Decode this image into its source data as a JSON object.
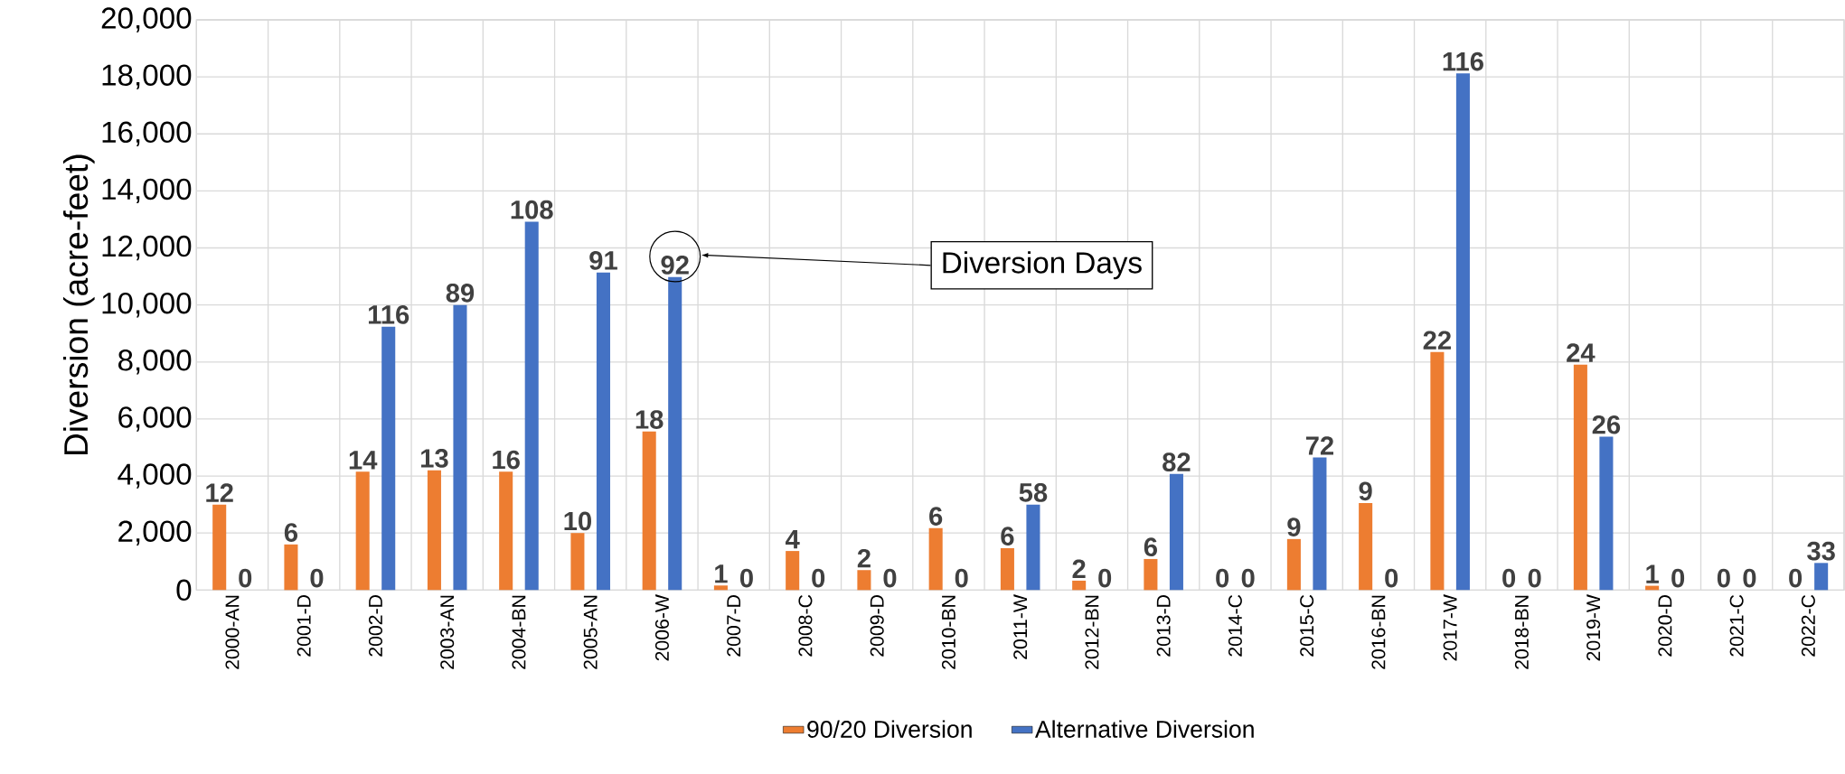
{
  "chart_data": {
    "type": "bar",
    "ylabel": "Diversion (acre-feet)",
    "categories": [
      "2000-AN",
      "2001-D",
      "2002-D",
      "2003-AN",
      "2004-BN",
      "2005-AN",
      "2006-W",
      "2007-D",
      "2008-C",
      "2009-D",
      "2010-BN",
      "2011-W",
      "2012-BN",
      "2013-D",
      "2014-C",
      "2015-C",
      "2016-BN",
      "2017-W",
      "2018-BN",
      "2019-W",
      "2020-D",
      "2021-C",
      "2022-C"
    ],
    "series": [
      {
        "name": "90/20 Diversion",
        "color": "#ed7d31",
        "values": [
          3000,
          1600,
          4150,
          4200,
          4150,
          2000,
          5560,
          160,
          1370,
          700,
          2170,
          1470,
          330,
          1090,
          0,
          1790,
          3050,
          8350,
          0,
          7910,
          150,
          0,
          0
        ]
      },
      {
        "name": "Alternative Diversion",
        "color": "#4472c4",
        "values": [
          0,
          0,
          9240,
          10000,
          12920,
          11140,
          10980,
          0,
          0,
          0,
          0,
          3000,
          0,
          4070,
          0,
          4650,
          0,
          18120,
          0,
          5380,
          0,
          0,
          950
        ]
      }
    ],
    "ylim": [
      0,
      20000
    ],
    "yticks": [
      0,
      {
        "value": 2000,
        "label": "2,000"
      },
      {
        "value": 4000,
        "label": "4,000"
      },
      {
        "value": 6000,
        "label": "6,000"
      },
      {
        "value": 8000,
        "label": "8,000"
      },
      {
        "value": 10000,
        "label": "10,000"
      },
      {
        "value": 12000,
        "label": "12,000"
      },
      {
        "value": 14000,
        "label": "14,000"
      },
      {
        "value": 16000,
        "label": "16,000"
      },
      {
        "value": 18000,
        "label": "18,000"
      },
      {
        "value": 20000,
        "label": "20,000"
      }
    ],
    "annotations": [
      "Diversion Days",
      "12",
      "6",
      "14",
      "13",
      "16",
      "10",
      "18",
      "1",
      "4",
      "2",
      "6",
      "6",
      "2",
      "6",
      "0",
      "9",
      "9",
      "22",
      "0",
      "24",
      "1",
      "0",
      "0",
      "0",
      "0",
      "116",
      "89",
      "108",
      "91",
      "92",
      "0",
      "0",
      "0",
      "0",
      "58",
      "0",
      "82",
      "0",
      "72",
      "0",
      "116",
      "0",
      "26",
      "0",
      "0",
      "33"
    ],
    "grid": true,
    "legend": "bottom"
  }
}
